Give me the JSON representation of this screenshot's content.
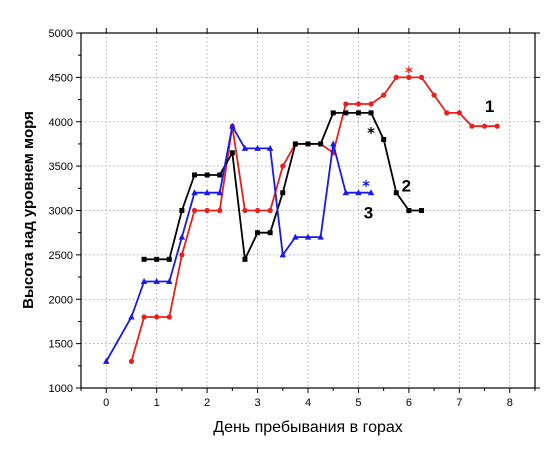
{
  "chart_data": {
    "type": "line",
    "title": "",
    "xlabel": "День пребывания в горах",
    "ylabel": "Высота над уровнем моря",
    "xlim": [
      -0.5,
      8.5
    ],
    "ylim": [
      1000,
      5000
    ],
    "xticks": [
      0,
      1,
      2,
      3,
      4,
      5,
      6,
      7,
      8
    ],
    "yticks": [
      1000,
      1500,
      2000,
      2500,
      3000,
      3500,
      4000,
      4500,
      5000
    ],
    "grid": true,
    "legend": "none",
    "series": [
      {
        "label": "1",
        "color": "#e8201c",
        "marker": "circle",
        "points": [
          [
            0.5,
            1300
          ],
          [
            0.75,
            1800
          ],
          [
            1,
            1800
          ],
          [
            1.25,
            1800
          ],
          [
            1.5,
            2500
          ],
          [
            1.75,
            3000
          ],
          [
            2,
            3000
          ],
          [
            2.25,
            3000
          ],
          [
            2.5,
            3950
          ],
          [
            2.75,
            3000
          ],
          [
            3,
            3000
          ],
          [
            3.25,
            3000
          ],
          [
            3.5,
            3500
          ],
          [
            3.75,
            3750
          ],
          [
            4,
            3750
          ],
          [
            4.25,
            3750
          ],
          [
            4.5,
            3650
          ],
          [
            4.75,
            4200
          ],
          [
            5,
            4200
          ],
          [
            5.25,
            4200
          ],
          [
            5.5,
            4300
          ],
          [
            5.75,
            4500
          ],
          [
            6,
            4500
          ],
          [
            6.25,
            4500
          ],
          [
            6.5,
            4300
          ],
          [
            6.75,
            4100
          ],
          [
            7,
            4100
          ],
          [
            7.25,
            3950
          ],
          [
            7.5,
            3950
          ],
          [
            7.75,
            3950
          ]
        ]
      },
      {
        "label": "2",
        "color": "#000000",
        "marker": "square",
        "points": [
          [
            0.75,
            2450
          ],
          [
            1,
            2450
          ],
          [
            1.25,
            2450
          ],
          [
            1.5,
            3000
          ],
          [
            1.75,
            3400
          ],
          [
            2,
            3400
          ],
          [
            2.25,
            3400
          ],
          [
            2.5,
            3650
          ],
          [
            2.75,
            2450
          ],
          [
            3,
            2750
          ],
          [
            3.25,
            2750
          ],
          [
            3.5,
            3200
          ],
          [
            3.75,
            3750
          ],
          [
            4,
            3750
          ],
          [
            4.25,
            3750
          ],
          [
            4.5,
            4100
          ],
          [
            4.75,
            4100
          ],
          [
            5,
            4100
          ],
          [
            5.25,
            4100
          ],
          [
            5.5,
            3800
          ],
          [
            5.75,
            3200
          ],
          [
            6,
            3000
          ],
          [
            6.25,
            3000
          ]
        ]
      },
      {
        "label": "3",
        "color": "#1a1ae6",
        "marker": "triangle",
        "points": [
          [
            0,
            1300
          ],
          [
            0.5,
            1800
          ],
          [
            0.75,
            2200
          ],
          [
            1,
            2200
          ],
          [
            1.25,
            2200
          ],
          [
            1.5,
            2700
          ],
          [
            1.75,
            3200
          ],
          [
            2,
            3200
          ],
          [
            2.25,
            3200
          ],
          [
            2.5,
            3950
          ],
          [
            2.75,
            3700
          ],
          [
            3,
            3700
          ],
          [
            3.25,
            3700
          ],
          [
            3.5,
            2500
          ],
          [
            3.75,
            2700
          ],
          [
            4,
            2700
          ],
          [
            4.25,
            2700
          ],
          [
            4.5,
            3750
          ],
          [
            4.75,
            3200
          ],
          [
            5,
            3200
          ],
          [
            5.25,
            3200
          ]
        ]
      }
    ],
    "annotations": [
      {
        "text": "*",
        "x": 6.0,
        "y": 4600,
        "color": "#e8201c"
      },
      {
        "text": "*",
        "x": 5.25,
        "y": 3920,
        "color": "#000000"
      },
      {
        "text": "*",
        "x": 5.15,
        "y": 3320,
        "color": "#1a1ae6"
      },
      {
        "text": "1",
        "x": 7.6,
        "y": 4180,
        "color": "#000000"
      },
      {
        "text": "2",
        "x": 5.95,
        "y": 3280,
        "color": "#000000"
      },
      {
        "text": "3",
        "x": 5.2,
        "y": 2980,
        "color": "#000000"
      }
    ]
  }
}
